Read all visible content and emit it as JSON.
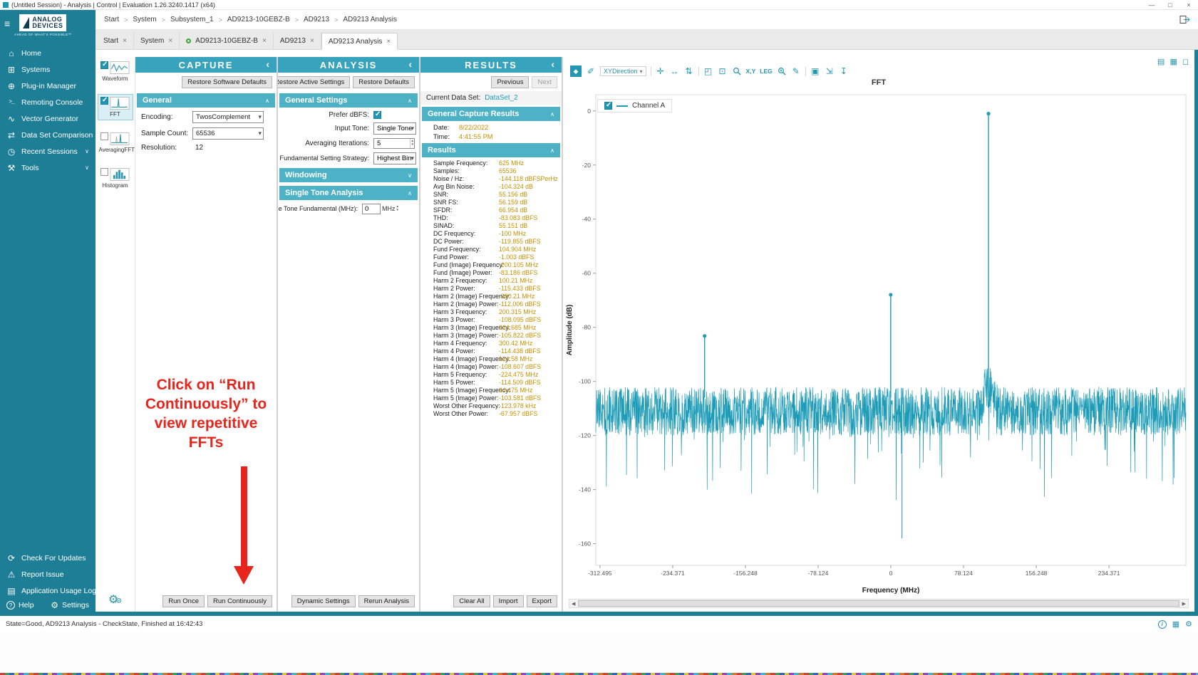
{
  "window": {
    "title": "(Untitled Session) - Analysis | Control | Evaluation 1.26.3240.1417 (x64)"
  },
  "breadcrumb": {
    "separator": ">",
    "items": [
      "Start",
      "System",
      "Subsystem_1",
      "AD9213-10GEBZ-B",
      "AD9213",
      "AD9213 Analysis"
    ]
  },
  "tabs": [
    {
      "label": "Start"
    },
    {
      "label": "System"
    },
    {
      "label": "AD9213-10GEBZ-B",
      "badge": true
    },
    {
      "label": "AD9213"
    },
    {
      "label": "AD9213 Analysis",
      "active": true
    }
  ],
  "sidebar": {
    "logo": {
      "line1": "ANALOG",
      "line2": "DEVICES",
      "tagline": "AHEAD OF WHAT'S POSSIBLE™"
    },
    "items": [
      {
        "label": "Home",
        "icon": "home-icon"
      },
      {
        "label": "Systems",
        "icon": "systems-icon"
      },
      {
        "label": "Plug-in Manager",
        "icon": "plugin-manager-icon"
      },
      {
        "label": "Remoting Console",
        "icon": "remoting-console-icon"
      },
      {
        "label": "Vector Generator",
        "icon": "vector-generator-icon"
      },
      {
        "label": "Data Set Comparison",
        "icon": "data-set-comparison-icon"
      },
      {
        "label": "Recent Sessions",
        "icon": "recent-sessions-icon",
        "chevron": true
      },
      {
        "label": "Tools",
        "icon": "tools-icon",
        "chevron": true
      }
    ],
    "footer_items": [
      {
        "label": "Check For Updates",
        "icon": "check-updates-icon"
      },
      {
        "label": "Report Issue",
        "icon": "report-issue-icon"
      },
      {
        "label": "Application Usage Logging",
        "icon": "usage-logging-icon"
      }
    ],
    "help": {
      "label": "Help"
    },
    "settings": {
      "label": "Settings"
    }
  },
  "views": {
    "items": [
      {
        "label": "Waveform",
        "checked": true
      },
      {
        "label": "FFT",
        "checked": true,
        "selected": true
      },
      {
        "label": "AveragingFFT",
        "checked": false
      },
      {
        "label": "Histogram",
        "checked": false
      }
    ]
  },
  "capture": {
    "title": "CAPTURE",
    "restore_button": "Restore Software Defaults",
    "section_general": "General",
    "fields": {
      "encoding_label": "Encoding:",
      "encoding_value": "TwosComplement",
      "sample_count_label": "Sample Count:",
      "sample_count_value": "65536",
      "resolution_label": "Resolution:",
      "resolution_value": "12"
    },
    "run_once": "Run Once",
    "run_continuously": "Run Continuously"
  },
  "analysis": {
    "title": "ANALYSIS",
    "restore_active": "Restore Active Settings",
    "restore_defaults": "Restore Defaults",
    "section_general": "General Settings",
    "prefer_dbfs_label": "Prefer dBFS:",
    "prefer_dbfs_checked": true,
    "input_tone_label": "Input Tone:",
    "input_tone_value": "Single Tone",
    "averaging_label": "Averaging Iterations:",
    "averaging_value": "5",
    "strategy_label": "Fundamental Setting Strategy:",
    "strategy_value": "Highest Bin",
    "section_windowing": "Windowing",
    "section_single_tone": "Single Tone Analysis",
    "fundamental_label": "Single Tone Fundamental (MHz):",
    "fundamental_value": "0",
    "fundamental_unit": "MHz",
    "dynamic_settings": "Dynamic Settings",
    "rerun": "Rerun Analysis"
  },
  "results": {
    "title": "RESULTS",
    "previous": "Previous",
    "next": "Next",
    "current_dataset_label": "Current Data Set:",
    "current_dataset_value": "DataSet_2",
    "section_capture": "General Capture Results",
    "date_label": "Date:",
    "date_value": "8/22/2022",
    "time_label": "Time:",
    "time_value": "4:41:55 PM",
    "section_results": "Results",
    "items": [
      [
        "Sample Frequency:",
        "625 MHz"
      ],
      [
        "Samples:",
        "65536"
      ],
      [
        "Noise / Hz:",
        "-144.118 dBFSPerHz"
      ],
      [
        "Avg Bin Noise:",
        "-104.324 dB"
      ],
      [
        "SNR:",
        "55.156 dB"
      ],
      [
        "SNR FS:",
        "56.159 dB"
      ],
      [
        "SFDR:",
        "66.954 dB"
      ],
      [
        "THD:",
        "-83.083 dBFS"
      ],
      [
        "SINAD:",
        "55.151 dB"
      ],
      [
        "DC Frequency:",
        "-100 MHz"
      ],
      [
        "DC Power:",
        "-119.855 dBFS"
      ],
      [
        "Fund Frequency:",
        "104.904 MHz"
      ],
      [
        "Fund Power:",
        "-1.003 dBFS"
      ],
      [
        "Fund (Image) Frequency:",
        "-200.105 MHz"
      ],
      [
        "Fund (Image) Power:",
        "-83.186 dBFS"
      ],
      [
        "Harm 2 Frequency:",
        "100.21 MHz"
      ],
      [
        "Harm 2 Power:",
        "-115.433 dBFS"
      ],
      [
        "Harm 2 (Image) Frequency:",
        "-300.21 MHz"
      ],
      [
        "Harm 2 (Image) Power:",
        "-112.006 dBFS"
      ],
      [
        "Harm 3 Frequency:",
        "200.315 MHz"
      ],
      [
        "Harm 3 Power:",
        "-108.095 dBFS"
      ],
      [
        "Harm 3 (Image) Frequency:",
        "224.685 MHz"
      ],
      [
        "Harm 3 (Image) Power:",
        "-105.822 dBFS"
      ],
      [
        "Harm 4 Frequency:",
        "300.42 MHz"
      ],
      [
        "Harm 4 Power:",
        "-114.438 dBFS"
      ],
      [
        "Harm 4 (Image) Frequency:",
        "124.58 MHz"
      ],
      [
        "Harm 4 (Image) Power:",
        "-108.607 dBFS"
      ],
      [
        "Harm 5 Frequency:",
        "-224.475 MHz"
      ],
      [
        "Harm 5 Power:",
        "-114.509 dBFS"
      ],
      [
        "Harm 5 (Image) Frequency:",
        "24.475 MHz"
      ],
      [
        "Harm 5 (Image) Power:",
        "-103.581 dBFS"
      ],
      [
        "Worst Other Frequency:",
        "-123.978 kHz"
      ],
      [
        "Worst Other Power:",
        "-67.957 dBFS"
      ]
    ],
    "clear_all": "Clear All",
    "import": "Import",
    "export": "Export"
  },
  "chart_toolbar": {
    "xy_direction": "XYDirection",
    "xy_label": "X,Y",
    "leg_label": "LEG"
  },
  "chart_data": {
    "type": "line",
    "title": "FFT",
    "xlabel": "Frequency (MHz)",
    "ylabel": "Amplitude (dB)",
    "xlim": [
      -317,
      317
    ],
    "ylim": [
      -168,
      6
    ],
    "x_ticks": [
      -312.495,
      -234.371,
      -156.248,
      -78.124,
      0,
      78.124,
      156.248,
      234.371
    ],
    "y_ticks": [
      0,
      -20,
      -40,
      -60,
      -80,
      -100,
      -120,
      -140,
      -160
    ],
    "grid": false,
    "series": [
      {
        "name": "Channel A",
        "color": "#1d9bb7"
      }
    ],
    "legend": {
      "position": "top-left",
      "entries": [
        {
          "label": "Channel A",
          "checked": true
        }
      ]
    },
    "noise_floor_db": -111,
    "noise_spread_db": 9,
    "peaks": [
      {
        "x": 104.904,
        "y": -1.003,
        "marker": true,
        "name": "Fundamental"
      },
      {
        "x": -0.124,
        "y": -67.957,
        "marker": true,
        "name": "Worst Other"
      },
      {
        "x": -200.105,
        "y": -83.186,
        "marker": true,
        "name": "Fund (Image)"
      }
    ],
    "dips": [
      {
        "x": 12,
        "y": -158
      }
    ]
  },
  "annotation": {
    "text": "Click on “Run Continuously” to view repetitive FFTs"
  },
  "status_bar": {
    "text": "State=Good, AD9213 Analysis - CheckState, Finished at 16:42:43"
  },
  "colors": {
    "sidebar_teal": "#1d7e96",
    "panel_header": "#38a3bd",
    "section_header": "#4eb2c7",
    "accent": "#2196b0",
    "value_text": "#c49000",
    "link": "#1d9cb8",
    "annotation_red": "#e8251d",
    "series": "#1d9bb7"
  }
}
